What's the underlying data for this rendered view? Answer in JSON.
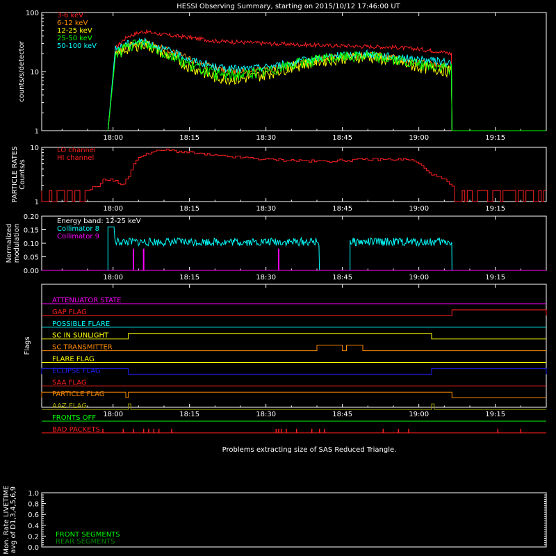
{
  "title": "HESSI Observing Summary, starting on 2015/10/12 17:46:00 UT",
  "time_ticks": [
    "18:00",
    "18:15",
    "18:30",
    "18:45",
    "19:00",
    "19:15"
  ],
  "colors": {
    "red": "#ff2020",
    "orange": "#ff8c00",
    "yellow": "#ffff00",
    "green": "#00ff00",
    "cyan": "#00ffff",
    "magenta": "#ff00ff",
    "blue": "#2020ff",
    "olive": "#a0a000"
  },
  "chart_data": [
    {
      "type": "line",
      "ylabel": "counts/s/detector",
      "y_scale": "log",
      "ylim": [
        1,
        100
      ],
      "yticks": [
        "1",
        "10",
        "100"
      ],
      "xlim_minutes": [
        -14,
        85
      ],
      "legend": [
        {
          "name": "3-6 keV",
          "color": "#ff2020"
        },
        {
          "name": "6-12 keV",
          "color": "#ff8c00"
        },
        {
          "name": "12-25 keV",
          "color": "#ffff00"
        },
        {
          "name": "25-50 keV",
          "color": "#00ff00"
        },
        {
          "name": "50-100 keV",
          "color": "#00ffff"
        }
      ],
      "series": [
        {
          "name": "3-6 keV",
          "x": [
            -1,
            0.5,
            3,
            6,
            10,
            15,
            20,
            30,
            40,
            48,
            55,
            60,
            64,
            66.5
          ],
          "y": [
            1,
            25,
            40,
            48,
            42,
            38,
            33,
            30,
            28,
            27,
            26,
            24,
            22,
            20
          ]
        },
        {
          "name": "6-12 keV",
          "x": [
            -1,
            0.5,
            3,
            6,
            10,
            15,
            20,
            25,
            30,
            35,
            40,
            45,
            50,
            55,
            60,
            64,
            66.5
          ],
          "y": [
            1,
            20,
            28,
            32,
            24,
            16,
            11,
            10,
            11,
            13,
            16,
            18,
            20,
            17,
            14,
            13,
            12
          ]
        },
        {
          "name": "12-25 keV",
          "x": [
            -1,
            0.5,
            3,
            6,
            10,
            15,
            20,
            25,
            30,
            35,
            40,
            45,
            50,
            55,
            60,
            64,
            66.5
          ],
          "y": [
            1,
            18,
            25,
            30,
            20,
            12,
            8,
            7.5,
            9,
            12,
            15,
            17,
            18,
            15,
            12,
            11,
            10
          ]
        },
        {
          "name": "25-50 keV",
          "x": [
            -1,
            0.5,
            3,
            6,
            10,
            15,
            20,
            25,
            30,
            35,
            40,
            45,
            50,
            55,
            60,
            64,
            66.5
          ],
          "y": [
            1,
            20,
            27,
            30,
            21,
            13,
            9,
            9,
            10,
            13,
            16,
            18,
            19,
            16,
            13,
            12,
            11
          ]
        },
        {
          "name": "50-100 keV",
          "x": [
            -1,
            0.5,
            3,
            6,
            10,
            15,
            20,
            25,
            30,
            35,
            40,
            45,
            50,
            55,
            60,
            64,
            66.5
          ],
          "y": [
            1,
            24,
            30,
            33,
            24,
            16,
            12,
            11,
            12,
            14,
            17,
            19,
            20,
            18,
            16,
            15,
            14
          ]
        }
      ]
    },
    {
      "type": "line",
      "ylabel": "PARTICLE RATES Counts/s",
      "y_scale": "log",
      "ylim": [
        1,
        10
      ],
      "yticks": [
        "1",
        "10"
      ],
      "legend": [
        {
          "name": "LO channel",
          "color": "#ff2020"
        },
        {
          "name": "HI channel",
          "color": "#ff2020"
        }
      ],
      "series": [
        {
          "name": "LO channel",
          "x": [
            -14,
            -9,
            -5,
            -3,
            -2,
            0,
            2,
            3,
            4,
            6,
            10,
            15,
            20,
            30,
            40,
            50,
            58,
            60,
            61,
            63,
            65,
            67,
            85
          ],
          "y": [
            1.6,
            1.6,
            1.6,
            2,
            2.5,
            2.5,
            2,
            3,
            5,
            7.5,
            9,
            8,
            7,
            6,
            5.5,
            6,
            6,
            5,
            4,
            3,
            2.5,
            1.6,
            1.6
          ]
        }
      ]
    },
    {
      "type": "line",
      "ylabel": "Normalized modulation",
      "ylim": [
        0,
        0.2
      ],
      "yticks": [
        "0.00",
        "0.05",
        "0.10",
        "0.15",
        "0.20"
      ],
      "annotation": "Energy band: 12-25 keV",
      "legend": [
        {
          "name": "Collimator 8",
          "color": "#00ffff"
        },
        {
          "name": "Collimator 9",
          "color": "#ff00ff"
        }
      ],
      "series": [
        {
          "name": "Collimator 8",
          "segments": [
            [
              -1,
              40.5
            ],
            [
              46.5,
              66.5
            ]
          ],
          "level": 0.105
        },
        {
          "name": "Collimator 9",
          "spikes_x": [
            4,
            6,
            32.5
          ],
          "level": 0.08
        }
      ]
    },
    {
      "type": "table",
      "ylabel": "Flags",
      "flags": [
        {
          "name": "ATTENUATOR STATE",
          "color": "#ff00ff",
          "high": []
        },
        {
          "name": "GAP FLAG",
          "color": "#ff2020",
          "high": [
            [
              66.5,
              85
            ]
          ]
        },
        {
          "name": "POSSIBLE FLARE",
          "color": "#00ffff",
          "high": []
        },
        {
          "name": "SC IN SUNLIGHT",
          "color": "#ffff00",
          "high": [
            [
              3,
              62.5
            ]
          ]
        },
        {
          "name": "SC TRANSMITTER",
          "color": "#ff8c00",
          "high": [
            [
              40,
              45
            ],
            [
              45.8,
              49
            ]
          ]
        },
        {
          "name": "FLARE FLAG",
          "color": "#ffff00",
          "high": []
        },
        {
          "name": "ECLIPSE FLAG",
          "color": "#2020ff",
          "high": [
            [
              -14,
              3
            ],
            [
              62.5,
              85
            ]
          ]
        },
        {
          "name": "SAA FLAG",
          "color": "#ff2020",
          "high": []
        },
        {
          "name": "PARTICLE FLAG",
          "color": "#ff8c00",
          "high": [
            [
              -14,
              2.5
            ],
            [
              3,
              66.5
            ]
          ]
        },
        {
          "name": "AAZ FLAG",
          "color": "#a0a000",
          "high": [
            [
              3,
              3.5
            ],
            [
              62.5,
              63
            ]
          ]
        },
        {
          "name": "FRONTS OFF",
          "color": "#00ff00",
          "high": []
        },
        {
          "name": "BAD PACKETS",
          "color": "#ff2020",
          "ticks": [
            -2,
            2,
            4,
            6,
            7,
            8,
            9,
            11.5,
            32,
            32.5,
            33,
            34,
            36,
            39,
            40.5,
            41.5,
            53,
            56,
            58,
            75.5,
            80
          ]
        }
      ]
    },
    {
      "type": "bar",
      "ylabel": "Mon. Rate LIVETIME avg of D1,3,4,5,6,9",
      "ylim": [
        0,
        1
      ],
      "yticks": [
        "0.0",
        "0.2",
        "0.4",
        "0.6",
        "0.8",
        "1.0"
      ],
      "legend": [
        {
          "name": "FRONT SEGMENTS",
          "color": "#00ff00"
        },
        {
          "name": "REAR SEGMENTS",
          "color": "#008800"
        }
      ]
    }
  ],
  "message": "Problems extracting size of SAS Reduced Triangle."
}
